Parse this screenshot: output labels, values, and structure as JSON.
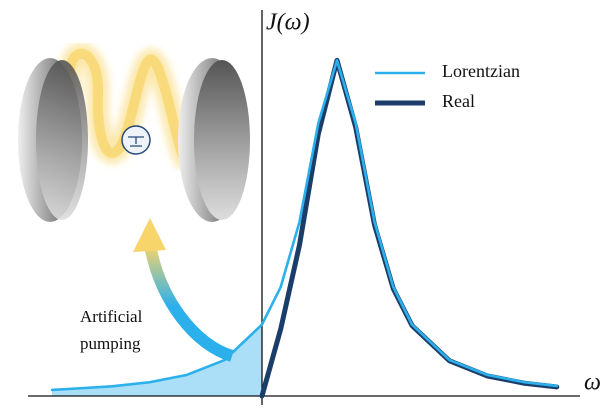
{
  "chart_data": {
    "type": "line",
    "x_label": "ω",
    "y_label": "J(ω)",
    "annotation": [
      "Artificial",
      "pumping"
    ],
    "x": [
      -2.8,
      -2.5,
      -2,
      -1.5,
      -1,
      -0.5,
      0,
      0.25,
      0.5,
      0.75,
      1,
      1.25,
      1.5,
      1.75,
      2,
      2.5,
      3,
      3.5,
      3.93
    ],
    "series": [
      {
        "name": "Lorentzian",
        "color": "#2bb0ec",
        "values": [
          0.018,
          0.022,
          0.029,
          0.041,
          0.063,
          0.107,
          0.213,
          0.325,
          0.519,
          0.812,
          1,
          0.812,
          0.519,
          0.325,
          0.213,
          0.107,
          0.063,
          0.041,
          0.03
        ]
      },
      {
        "name": "Real",
        "color": "#1b3d6a",
        "values": [
          null,
          null,
          null,
          null,
          null,
          null,
          0,
          0.2,
          0.45,
          0.78,
          1,
          0.8,
          0.51,
          0.32,
          0.21,
          0.105,
          0.06,
          0.038,
          0.027
        ]
      }
    ],
    "xlim": [
      -3.12,
      4.24
    ],
    "ylim": [
      0,
      1.15
    ],
    "shade_below": 0
  }
}
